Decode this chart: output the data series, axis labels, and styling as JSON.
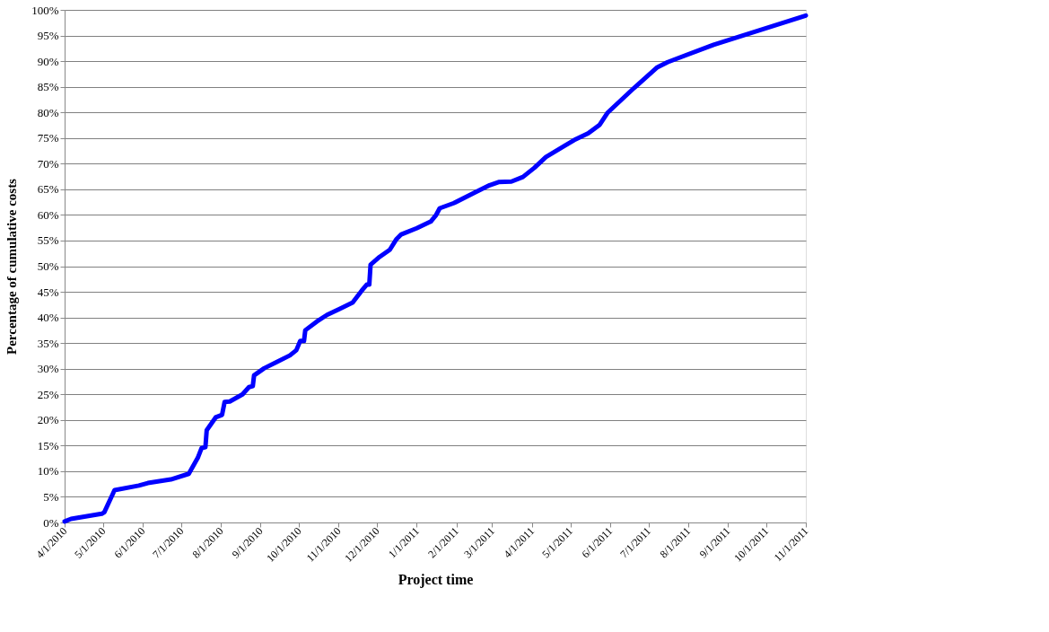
{
  "chart_data": {
    "type": "line",
    "xlabel": "Project time",
    "ylabel": "Percentage of cumulative costs",
    "x": [
      "2010-04-01",
      "2010-04-06",
      "2010-04-30",
      "2010-05-02",
      "2010-05-10",
      "2010-05-29",
      "2010-06-05",
      "2010-06-23",
      "2010-07-07",
      "2010-07-14",
      "2010-07-17",
      "2010-07-20",
      "2010-07-21",
      "2010-07-28",
      "2010-08-02",
      "2010-08-04",
      "2010-08-08",
      "2010-08-18",
      "2010-08-23",
      "2010-08-26",
      "2010-08-27",
      "2010-09-04",
      "2010-09-13",
      "2010-09-24",
      "2010-09-29",
      "2010-10-02",
      "2010-10-05",
      "2010-10-06",
      "2010-10-15",
      "2010-10-23",
      "2010-11-02",
      "2010-11-12",
      "2010-11-19",
      "2010-11-23",
      "2010-11-25",
      "2010-11-26",
      "2010-12-03",
      "2010-12-11",
      "2010-12-16",
      "2010-12-20",
      "2011-01-01",
      "2011-01-12",
      "2011-01-16",
      "2011-01-19",
      "2011-01-30",
      "2011-02-15",
      "2011-02-27",
      "2011-03-06",
      "2011-03-16",
      "2011-03-25",
      "2011-04-03",
      "2011-04-12",
      "2011-04-26",
      "2011-05-04",
      "2011-05-15",
      "2011-05-24",
      "2011-05-30",
      "2011-06-20",
      "2011-07-08",
      "2011-07-16",
      "2011-08-21",
      "2011-11-01"
    ],
    "series": [
      {
        "color": "#0000ff",
        "values": [
          0.2,
          0.7,
          1.7,
          2.0,
          6.3,
          7.2,
          7.7,
          8.4,
          9.5,
          12.6,
          14.5,
          14.7,
          18.0,
          20.5,
          21.0,
          23.5,
          23.6,
          25.0,
          26.4,
          26.6,
          28.7,
          30.1,
          31.2,
          32.6,
          33.6,
          35.4,
          35.4,
          37.5,
          39.2,
          40.5,
          41.7,
          42.9,
          45.2,
          46.4,
          46.4,
          50.3,
          51.8,
          53.2,
          55.2,
          56.2,
          57.4,
          58.7,
          59.9,
          61.3,
          62.3,
          64.3,
          65.8,
          66.4,
          66.5,
          67.4,
          69.2,
          71.3,
          73.4,
          74.6,
          75.9,
          77.6,
          79.9,
          84.8,
          88.8,
          89.8,
          93.2,
          98.9
        ]
      }
    ],
    "xlim": [
      "2010-04-01",
      "2011-11-01"
    ],
    "xticks": [
      {
        "value": "2010-04-01",
        "label": "4/1/2010"
      },
      {
        "value": "2010-05-01",
        "label": "5/1/2010"
      },
      {
        "value": "2010-06-01",
        "label": "6/1/2010"
      },
      {
        "value": "2010-07-01",
        "label": "7/1/2010"
      },
      {
        "value": "2010-08-01",
        "label": "8/1/2010"
      },
      {
        "value": "2010-09-01",
        "label": "9/1/2010"
      },
      {
        "value": "2010-10-01",
        "label": "10/1/2010"
      },
      {
        "value": "2010-11-01",
        "label": "11/1/2010"
      },
      {
        "value": "2010-12-01",
        "label": "12/1/2010"
      },
      {
        "value": "2011-01-01",
        "label": "1/1/2011"
      },
      {
        "value": "2011-02-01",
        "label": "2/1/2011"
      },
      {
        "value": "2011-03-01",
        "label": "3/1/2011"
      },
      {
        "value": "2011-04-01",
        "label": "4/1/2011"
      },
      {
        "value": "2011-05-01",
        "label": "5/1/2011"
      },
      {
        "value": "2011-06-01",
        "label": "6/1/2011"
      },
      {
        "value": "2011-07-01",
        "label": "7/1/2011"
      },
      {
        "value": "2011-08-01",
        "label": "8/1/2011"
      },
      {
        "value": "2011-09-01",
        "label": "9/1/2011"
      },
      {
        "value": "2011-10-01",
        "label": "10/1/2011"
      },
      {
        "value": "2011-11-01",
        "label": "11/1/2011"
      }
    ],
    "ylim": [
      0,
      100
    ],
    "yticks": [
      {
        "value": 0,
        "label": "0%"
      },
      {
        "value": 5,
        "label": "5%"
      },
      {
        "value": 10,
        "label": "10%"
      },
      {
        "value": 15,
        "label": "15%"
      },
      {
        "value": 20,
        "label": "20%"
      },
      {
        "value": 25,
        "label": "25%"
      },
      {
        "value": 30,
        "label": "30%"
      },
      {
        "value": 35,
        "label": "35%"
      },
      {
        "value": 40,
        "label": "40%"
      },
      {
        "value": 45,
        "label": "45%"
      },
      {
        "value": 50,
        "label": "50%"
      },
      {
        "value": 55,
        "label": "55%"
      },
      {
        "value": 60,
        "label": "60%"
      },
      {
        "value": 65,
        "label": "65%"
      },
      {
        "value": 70,
        "label": "70%"
      },
      {
        "value": 75,
        "label": "75%"
      },
      {
        "value": 80,
        "label": "80%"
      },
      {
        "value": 85,
        "label": "85%"
      },
      {
        "value": 90,
        "label": "90%"
      },
      {
        "value": 95,
        "label": "95%"
      },
      {
        "value": 100,
        "label": "100%"
      }
    ],
    "grid": "y",
    "legend": false,
    "marker": "none",
    "line_style": "solid"
  }
}
